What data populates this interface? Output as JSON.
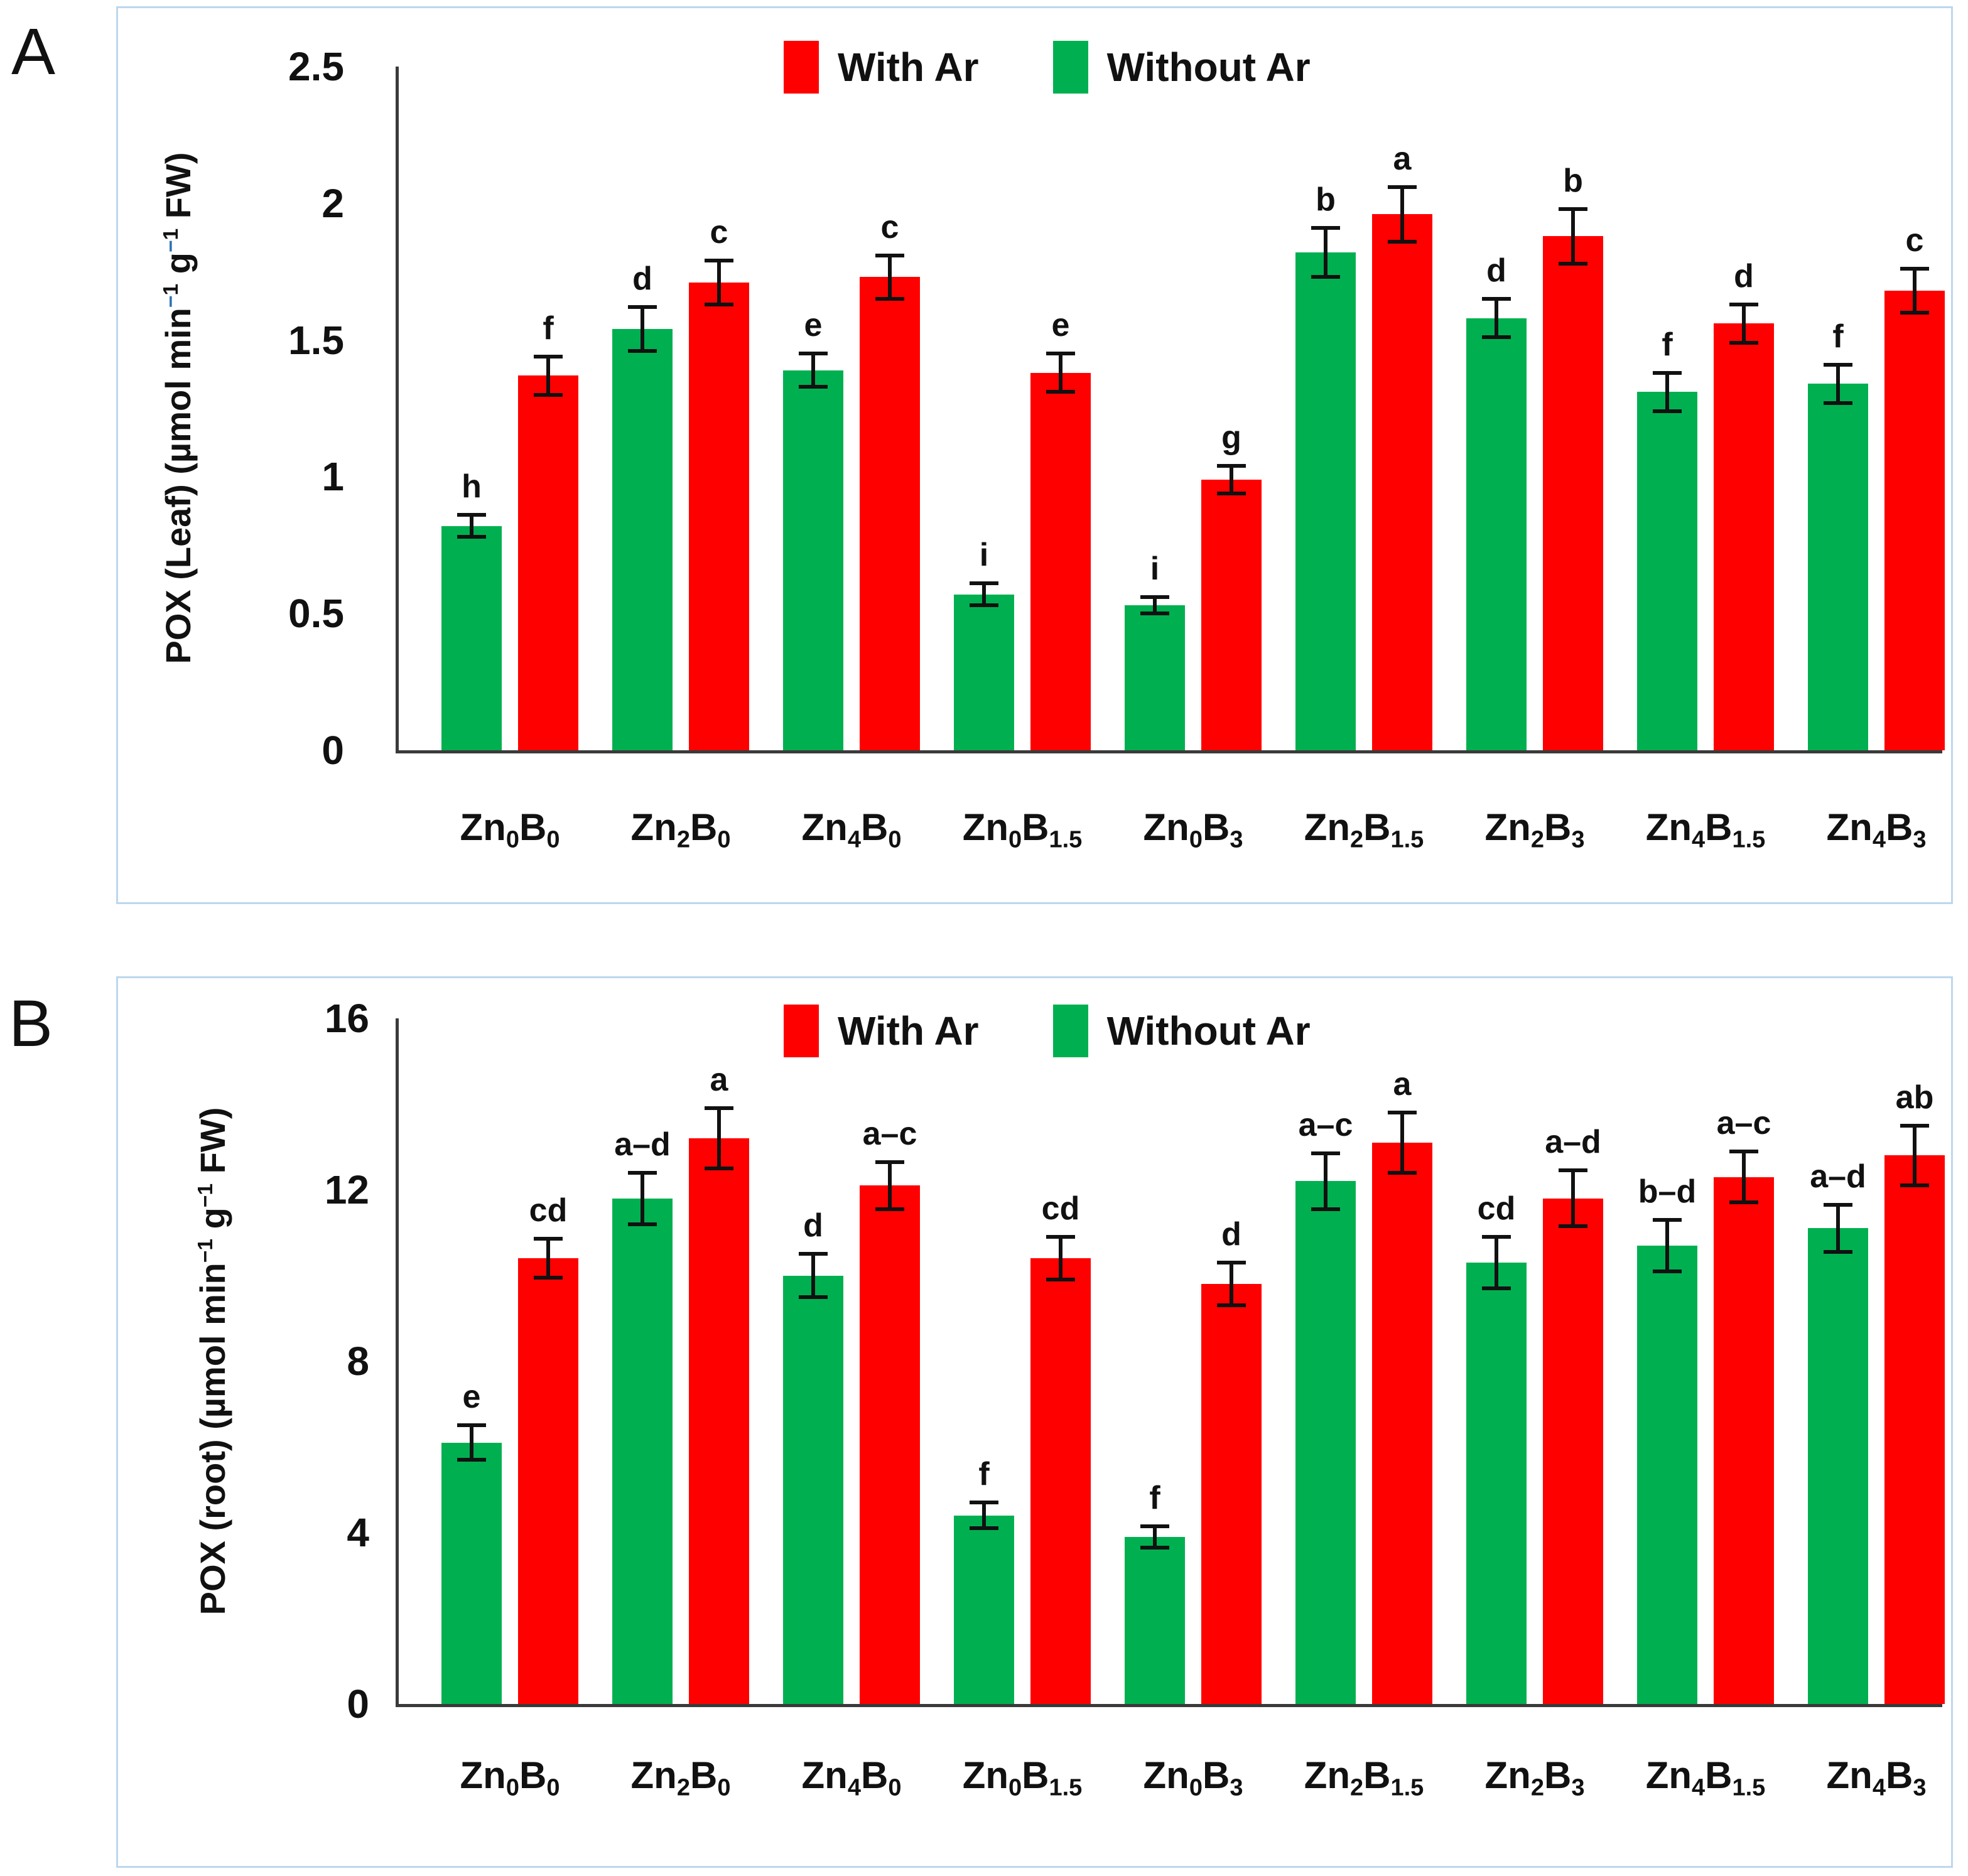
{
  "figure": {
    "panels": [
      {
        "label": "A"
      },
      {
        "label": "B"
      }
    ]
  },
  "colors": {
    "with_ar": "#FF0000",
    "without_ar": "#00B050",
    "panel_border": "#BDD7EE",
    "axis": "#3A3A3A",
    "leaf_sup_minus": "#2E75B6"
  },
  "chart_data": [
    {
      "type": "bar",
      "panel": "A",
      "title": "",
      "xlabel": "",
      "ylabel": "POX (Leaf) (µmol min⁻¹ g⁻¹ FW)",
      "ylabel_parts": {
        "pre": "POX (Leaf) (µmol min",
        "sup_minus": "−",
        "sup_digit": "1",
        "mid": " g",
        "suffix": " FW)",
        "minus_color": "#2E75B6"
      },
      "ylim": [
        0,
        2.5
      ],
      "yticks": [
        "0",
        "0.5",
        "1",
        "1.5",
        "2",
        "2.5"
      ],
      "grid": false,
      "legend_position": "top",
      "legend": [
        {
          "label": "With Ar",
          "color": "#FF0000"
        },
        {
          "label": "Without Ar",
          "color": "#00B050"
        }
      ],
      "categories": [
        {
          "el1": "Zn",
          "sub1": "0",
          "el2": "B",
          "sub2": "0"
        },
        {
          "el1": "Zn",
          "sub1": "2",
          "el2": "B",
          "sub2": "0"
        },
        {
          "el1": "Zn",
          "sub1": "4",
          "el2": "B",
          "sub2": "0"
        },
        {
          "el1": "Zn",
          "sub1": "0",
          "el2": "B",
          "sub2": "1.5"
        },
        {
          "el1": "Zn",
          "sub1": "0",
          "el2": "B",
          "sub2": "3"
        },
        {
          "el1": "Zn",
          "sub1": "2",
          "el2": "B",
          "sub2": "1.5"
        },
        {
          "el1": "Zn",
          "sub1": "2",
          "el2": "B",
          "sub2": "3"
        },
        {
          "el1": "Zn",
          "sub1": "4",
          "el2": "B",
          "sub2": "1.5"
        },
        {
          "el1": "Zn",
          "sub1": "4",
          "el2": "B",
          "sub2": "3"
        }
      ],
      "series": [
        {
          "name": "Without Ar",
          "color": "#00B050",
          "values": [
            0.82,
            1.54,
            1.39,
            0.57,
            0.53,
            1.82,
            1.58,
            1.31,
            1.34
          ],
          "errors": [
            0.04,
            0.08,
            0.06,
            0.04,
            0.03,
            0.09,
            0.07,
            0.07,
            0.07
          ],
          "letters": [
            "h",
            "d",
            "e",
            "i",
            "i",
            "b",
            "d",
            "f",
            "f"
          ]
        },
        {
          "name": "With Ar",
          "color": "#FF0000",
          "values": [
            1.37,
            1.71,
            1.73,
            1.38,
            0.99,
            1.96,
            1.88,
            1.56,
            1.68
          ],
          "errors": [
            0.07,
            0.08,
            0.08,
            0.07,
            0.05,
            0.1,
            0.1,
            0.07,
            0.08
          ],
          "letters": [
            "f",
            "c",
            "c",
            "e",
            "g",
            "a",
            "b",
            "d",
            "c"
          ]
        }
      ]
    },
    {
      "type": "bar",
      "panel": "B",
      "title": "",
      "xlabel": "",
      "ylabel": "POX (root) (µmol min⁻¹ g⁻¹ FW)",
      "ylabel_parts": {
        "pre": "POX (root) (µmol min",
        "sup_minus": "−",
        "sup_digit": "1",
        "mid": " g",
        "suffix": " FW)",
        "minus_color": "#111111"
      },
      "ylim": [
        0,
        16
      ],
      "yticks": [
        "0",
        "4",
        "8",
        "12",
        "16"
      ],
      "grid": false,
      "legend_position": "top",
      "legend": [
        {
          "label": "With Ar",
          "color": "#FF0000"
        },
        {
          "label": "Without Ar",
          "color": "#00B050"
        }
      ],
      "categories": [
        {
          "el1": "Zn",
          "sub1": "0",
          "el2": "B",
          "sub2": "0"
        },
        {
          "el1": "Zn",
          "sub1": "2",
          "el2": "B",
          "sub2": "0"
        },
        {
          "el1": "Zn",
          "sub1": "4",
          "el2": "B",
          "sub2": "0"
        },
        {
          "el1": "Zn",
          "sub1": "0",
          "el2": "B",
          "sub2": "1.5"
        },
        {
          "el1": "Zn",
          "sub1": "0",
          "el2": "B",
          "sub2": "3"
        },
        {
          "el1": "Zn",
          "sub1": "2",
          "el2": "B",
          "sub2": "1.5"
        },
        {
          "el1": "Zn",
          "sub1": "2",
          "el2": "B",
          "sub2": "3"
        },
        {
          "el1": "Zn",
          "sub1": "4",
          "el2": "B",
          "sub2": "1.5"
        },
        {
          "el1": "Zn",
          "sub1": "4",
          "el2": "B",
          "sub2": "3"
        }
      ],
      "series": [
        {
          "name": "Without Ar",
          "color": "#00B050",
          "values": [
            6.1,
            11.8,
            10.0,
            4.4,
            3.9,
            12.2,
            10.3,
            10.7,
            11.1
          ],
          "errors": [
            0.4,
            0.6,
            0.5,
            0.3,
            0.25,
            0.65,
            0.6,
            0.6,
            0.55
          ],
          "letters": [
            "e",
            "a–d",
            "d",
            "f",
            "f",
            "a–c",
            "cd",
            "b–d",
            "a–d"
          ]
        },
        {
          "name": "With Ar",
          "color": "#FF0000",
          "values": [
            10.4,
            13.2,
            12.1,
            10.4,
            9.8,
            13.1,
            11.8,
            12.3,
            12.8
          ],
          "errors": [
            0.45,
            0.7,
            0.55,
            0.5,
            0.5,
            0.7,
            0.65,
            0.6,
            0.7
          ],
          "letters": [
            "cd",
            "a",
            "a–c",
            "cd",
            "d",
            "a",
            "a–d",
            "a–c",
            "ab"
          ]
        }
      ]
    }
  ]
}
